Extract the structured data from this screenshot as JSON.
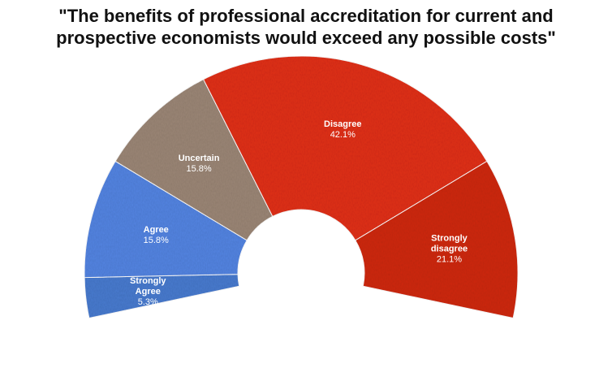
{
  "chart_data": {
    "type": "pie",
    "style": "half-donut",
    "title_lines": [
      "\"The benefits of professional accreditation for current and",
      "prospective economists would exceed any possible costs\""
    ],
    "legend": "none",
    "slices": [
      {
        "label_lines": [
          "Strongly",
          "Agree"
        ],
        "value": 5.3,
        "value_label": "5.3%",
        "color": "#4a7bd0"
      },
      {
        "label_lines": [
          "Agree"
        ],
        "value": 15.8,
        "value_label": "15.8%",
        "color": "#5585e3"
      },
      {
        "label_lines": [
          "Uncertain"
        ],
        "value": 15.8,
        "value_label": "15.8%",
        "color": "#9c8777"
      },
      {
        "label_lines": [
          "Disagree"
        ],
        "value": 42.1,
        "value_label": "42.1%",
        "color": "#e2321e"
      },
      {
        "label_lines": [
          "Strongly",
          "disagree"
        ],
        "value": 21.1,
        "value_label": "21.1%",
        "color": "#d02a19"
      }
    ]
  }
}
